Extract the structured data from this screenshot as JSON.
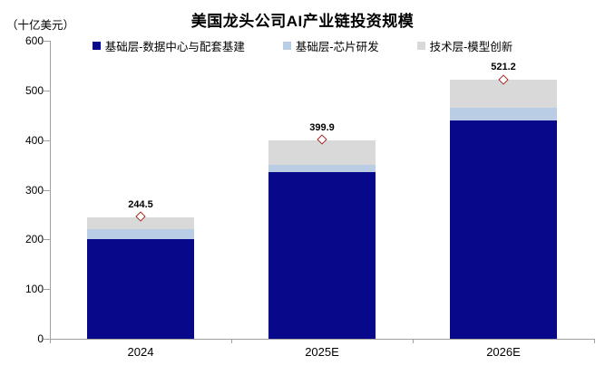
{
  "title": "美国龙头公司AI产业链投资规模",
  "unit_label": "（十亿美元）",
  "chart_data": {
    "type": "bar",
    "subtype": "stacked-bars-with-total-diamond-markers",
    "title": "美国龙头公司AI产业链投资规模",
    "ylabel": "（十亿美元）",
    "xlabel": "",
    "categories": [
      "2024",
      "2025E",
      "2026E"
    ],
    "series": [
      {
        "name": "基础层-数据中心与配套基建",
        "color": "#08088a",
        "values": [
          200,
          335,
          440
        ]
      },
      {
        "name": "基础层-芯片研发",
        "color": "#b9cde4",
        "values": [
          20,
          15,
          25
        ]
      },
      {
        "name": "技术层-模型创新",
        "color": "#d9d9d9",
        "values": [
          24.5,
          49.9,
          56.2
        ]
      }
    ],
    "totals": {
      "values": [
        244.5,
        399.9,
        521.2
      ],
      "labels": [
        "244.5",
        "399.9",
        "521.2"
      ],
      "marker": "hollow-diamond",
      "marker_color": "#9e2b25"
    },
    "ylim": [
      0,
      600
    ],
    "yticks": [
      0,
      100,
      200,
      300,
      400,
      500,
      600
    ],
    "grid": false,
    "legend_position": "top-center",
    "axis_color": "#a0a0a0",
    "text_color": "#000000",
    "background_color": "#ffffff"
  }
}
